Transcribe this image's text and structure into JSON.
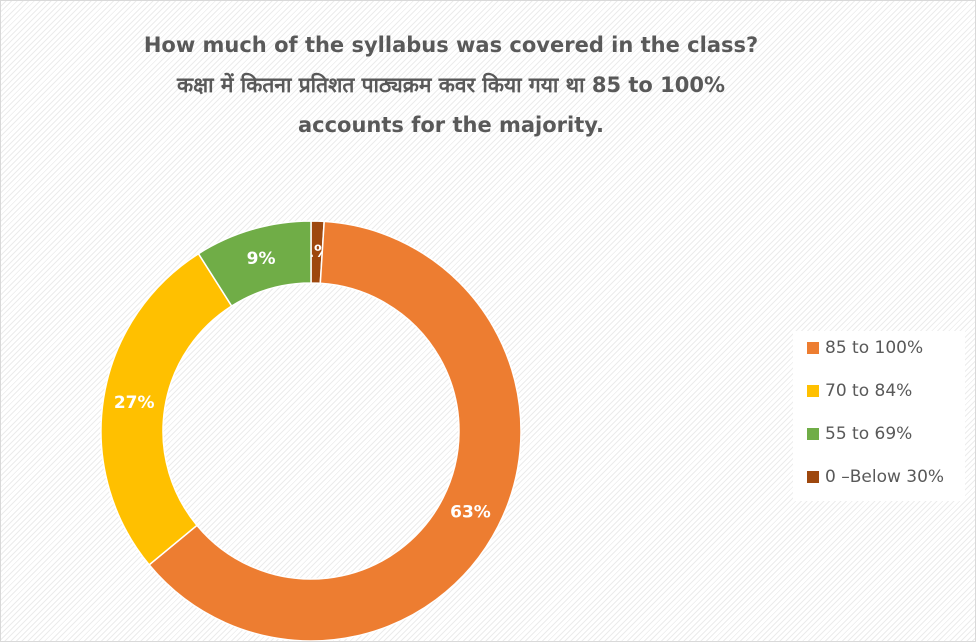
{
  "chart_data": {
    "type": "donut",
    "title": "How much of the syllabus was covered in the class? कक्षा में कितना प्रतिशत पाठ्यक्रम कवर किया गया था 85 to 100% accounts for the majority.",
    "categories": [
      "85 to 100%",
      "70 to 84%",
      "55 to 69%",
      "0 –Below 30%"
    ],
    "values": [
      63,
      27,
      9,
      1
    ],
    "value_labels": [
      "63%",
      "27%",
      "9%",
      "1%"
    ],
    "colors": [
      "#ED7D31",
      "#FFC000",
      "#70AD47",
      "#9E480E"
    ],
    "legend": "right"
  }
}
